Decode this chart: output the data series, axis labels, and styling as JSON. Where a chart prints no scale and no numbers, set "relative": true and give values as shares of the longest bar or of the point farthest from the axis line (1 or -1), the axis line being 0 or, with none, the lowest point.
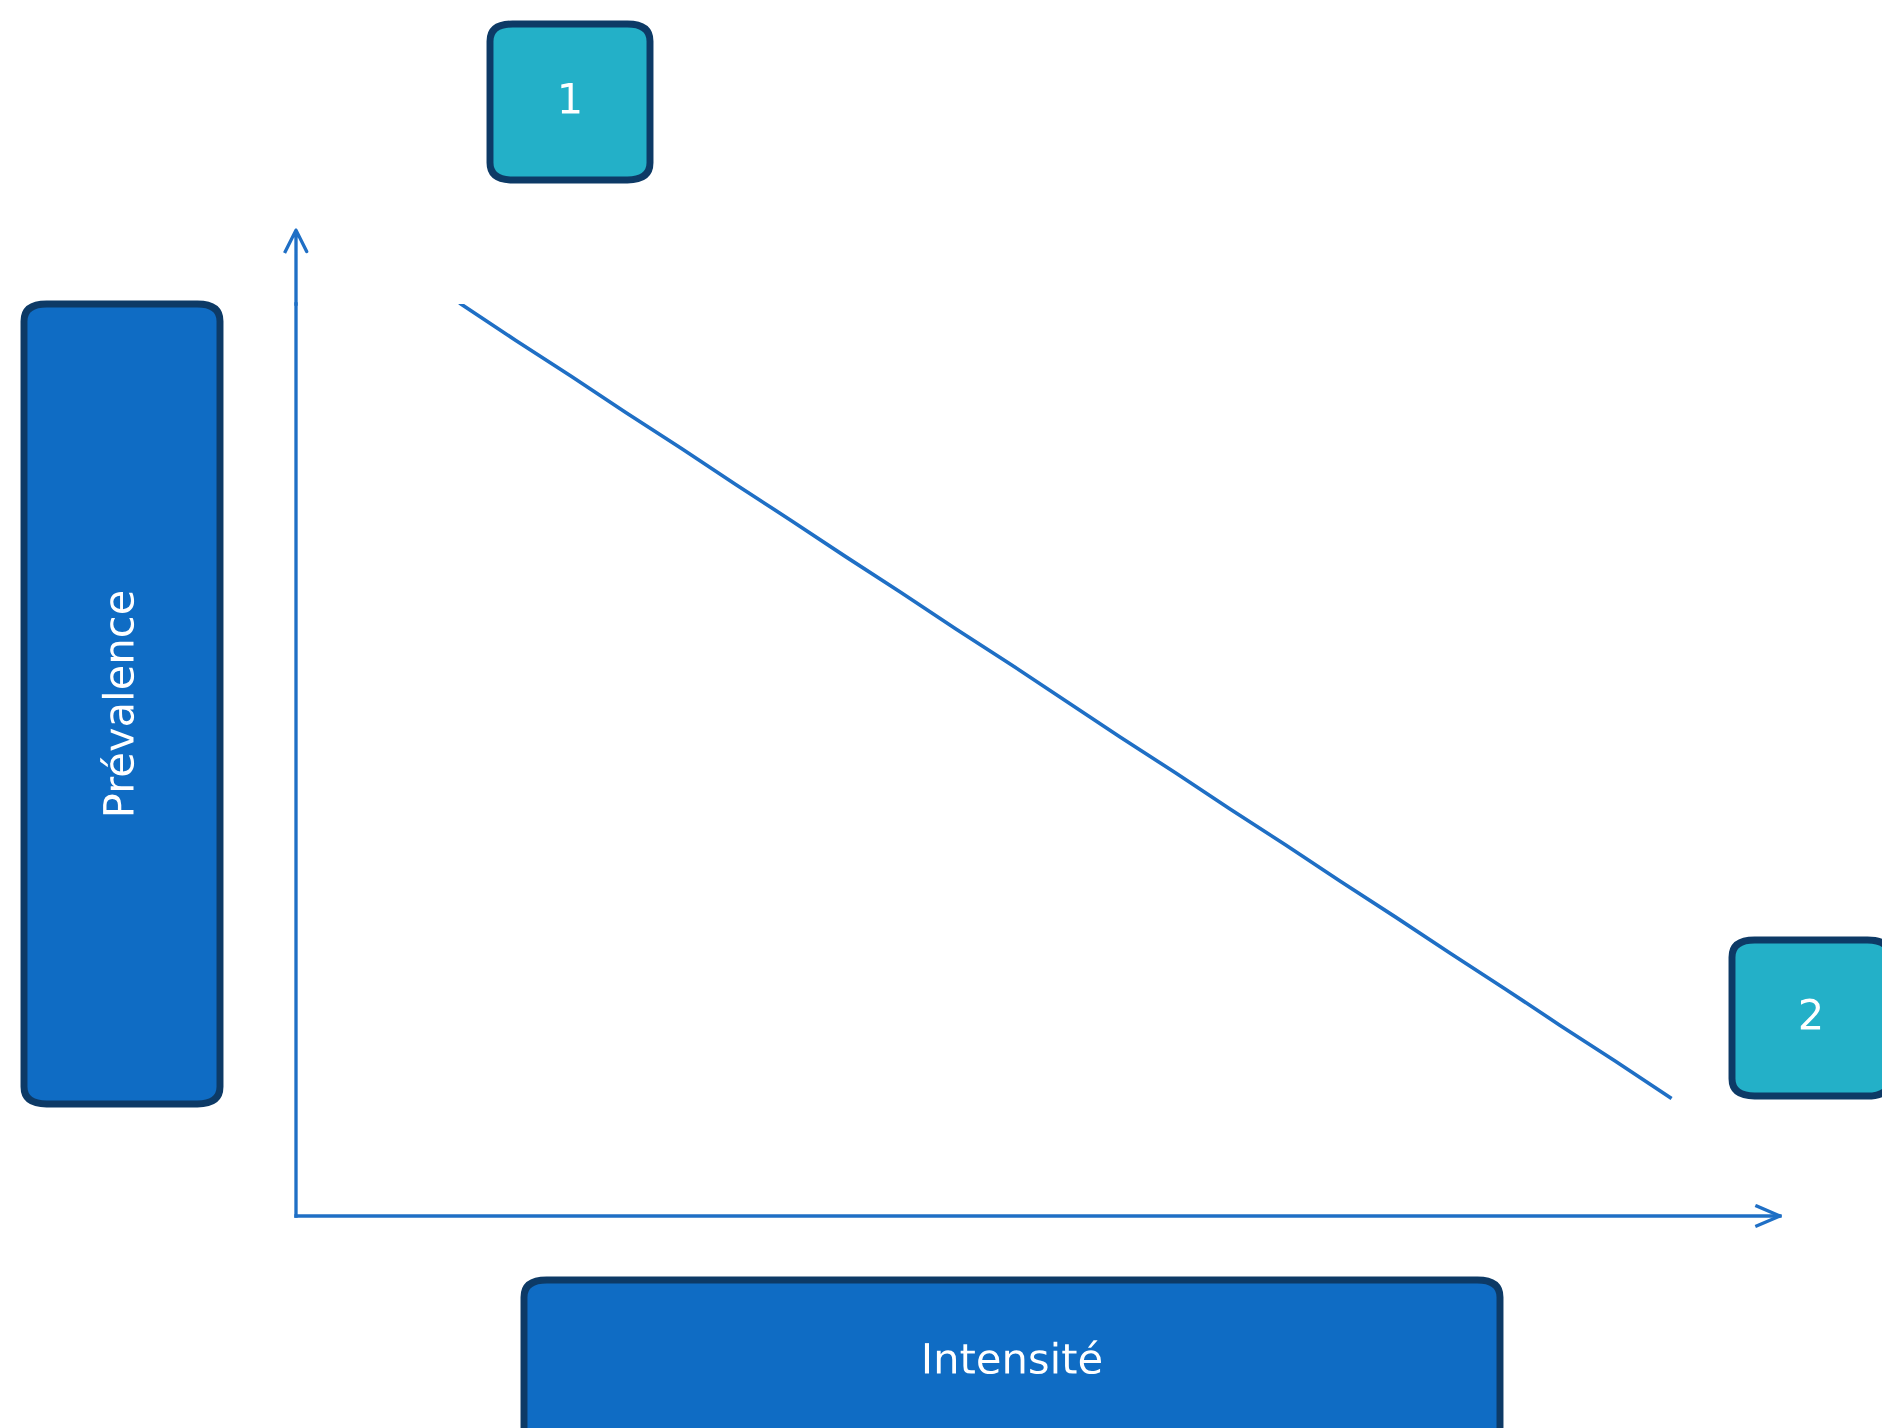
{
  "chart_data": {
    "type": "line",
    "relative": true,
    "categories": [
      null,
      null,
      null,
      null,
      null,
      null,
      null,
      null,
      null,
      null,
      null,
      null,
      null,
      null,
      null,
      null,
      null,
      null,
      null,
      null,
      null,
      null,
      null,
      null,
      null,
      null,
      null,
      null
    ],
    "xlabel": "Intensité",
    "ylabel": "Prévalence",
    "series": [
      {
        "color": "#1f6fc5",
        "values": [
          null,
          null,
          null,
          1,
          0.96,
          0.921,
          0.881,
          0.842,
          0.802,
          0.763,
          0.723,
          0.684,
          0.644,
          0.605,
          0.565,
          0.525,
          0.486,
          0.446,
          0.407,
          0.367,
          0.328,
          0.288,
          0.249,
          0.209,
          0.17,
          0.13,
          null,
          null
        ]
      }
    ],
    "annotations": [
      "1",
      "2"
    ],
    "marker": "none",
    "line_style": "solid"
  }
}
